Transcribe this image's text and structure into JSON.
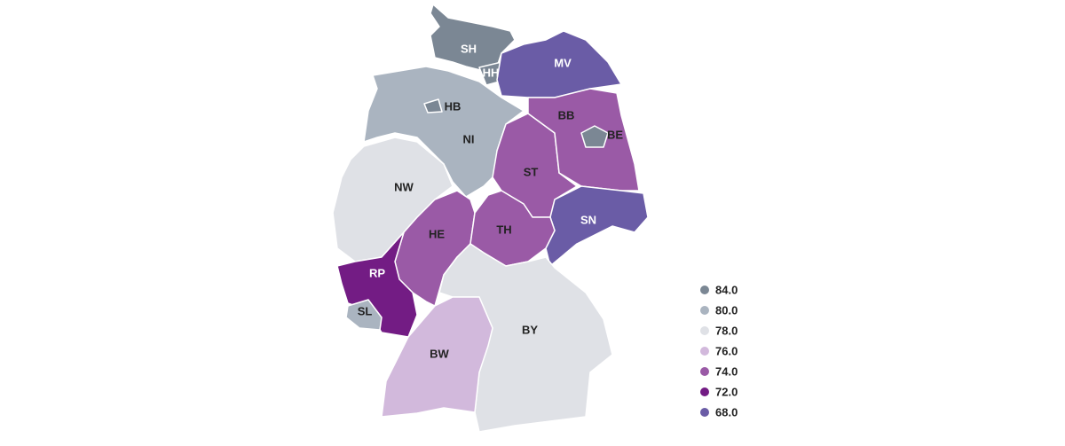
{
  "regions": [
    {
      "code": "SH",
      "color": "#7b8794"
    },
    {
      "code": "HH",
      "color": "#7b8794"
    },
    {
      "code": "MV",
      "color": "#6a5ca6"
    },
    {
      "code": "NI",
      "color": "#aab4c0"
    },
    {
      "code": "HB",
      "color": "#7b8794"
    },
    {
      "code": "NW",
      "color": "#dfe1e6"
    },
    {
      "code": "HE",
      "color": "#9a5aa6"
    },
    {
      "code": "RP",
      "color": "#731c84"
    },
    {
      "code": "SL",
      "color": "#aab4c0"
    },
    {
      "code": "ST",
      "color": "#9a5aa6"
    },
    {
      "code": "BB",
      "color": "#9a5aa6"
    },
    {
      "code": "BE",
      "color": "#7b8794"
    },
    {
      "code": "SN",
      "color": "#6a5ca6"
    },
    {
      "code": "TH",
      "color": "#9a5aa6"
    },
    {
      "code": "BW",
      "color": "#d2b9dc"
    },
    {
      "code": "BY",
      "color": "#dfe1e6"
    }
  ],
  "legend": [
    {
      "label": "84.0",
      "color": "#7b8794"
    },
    {
      "label": "80.0",
      "color": "#aab4c0"
    },
    {
      "label": "78.0",
      "color": "#dfe1e6"
    },
    {
      "label": "76.0",
      "color": "#d2b9dc"
    },
    {
      "label": "74.0",
      "color": "#9a5aa6"
    },
    {
      "label": "72.0",
      "color": "#731c84"
    },
    {
      "label": "68.0",
      "color": "#6a5ca6"
    }
  ]
}
